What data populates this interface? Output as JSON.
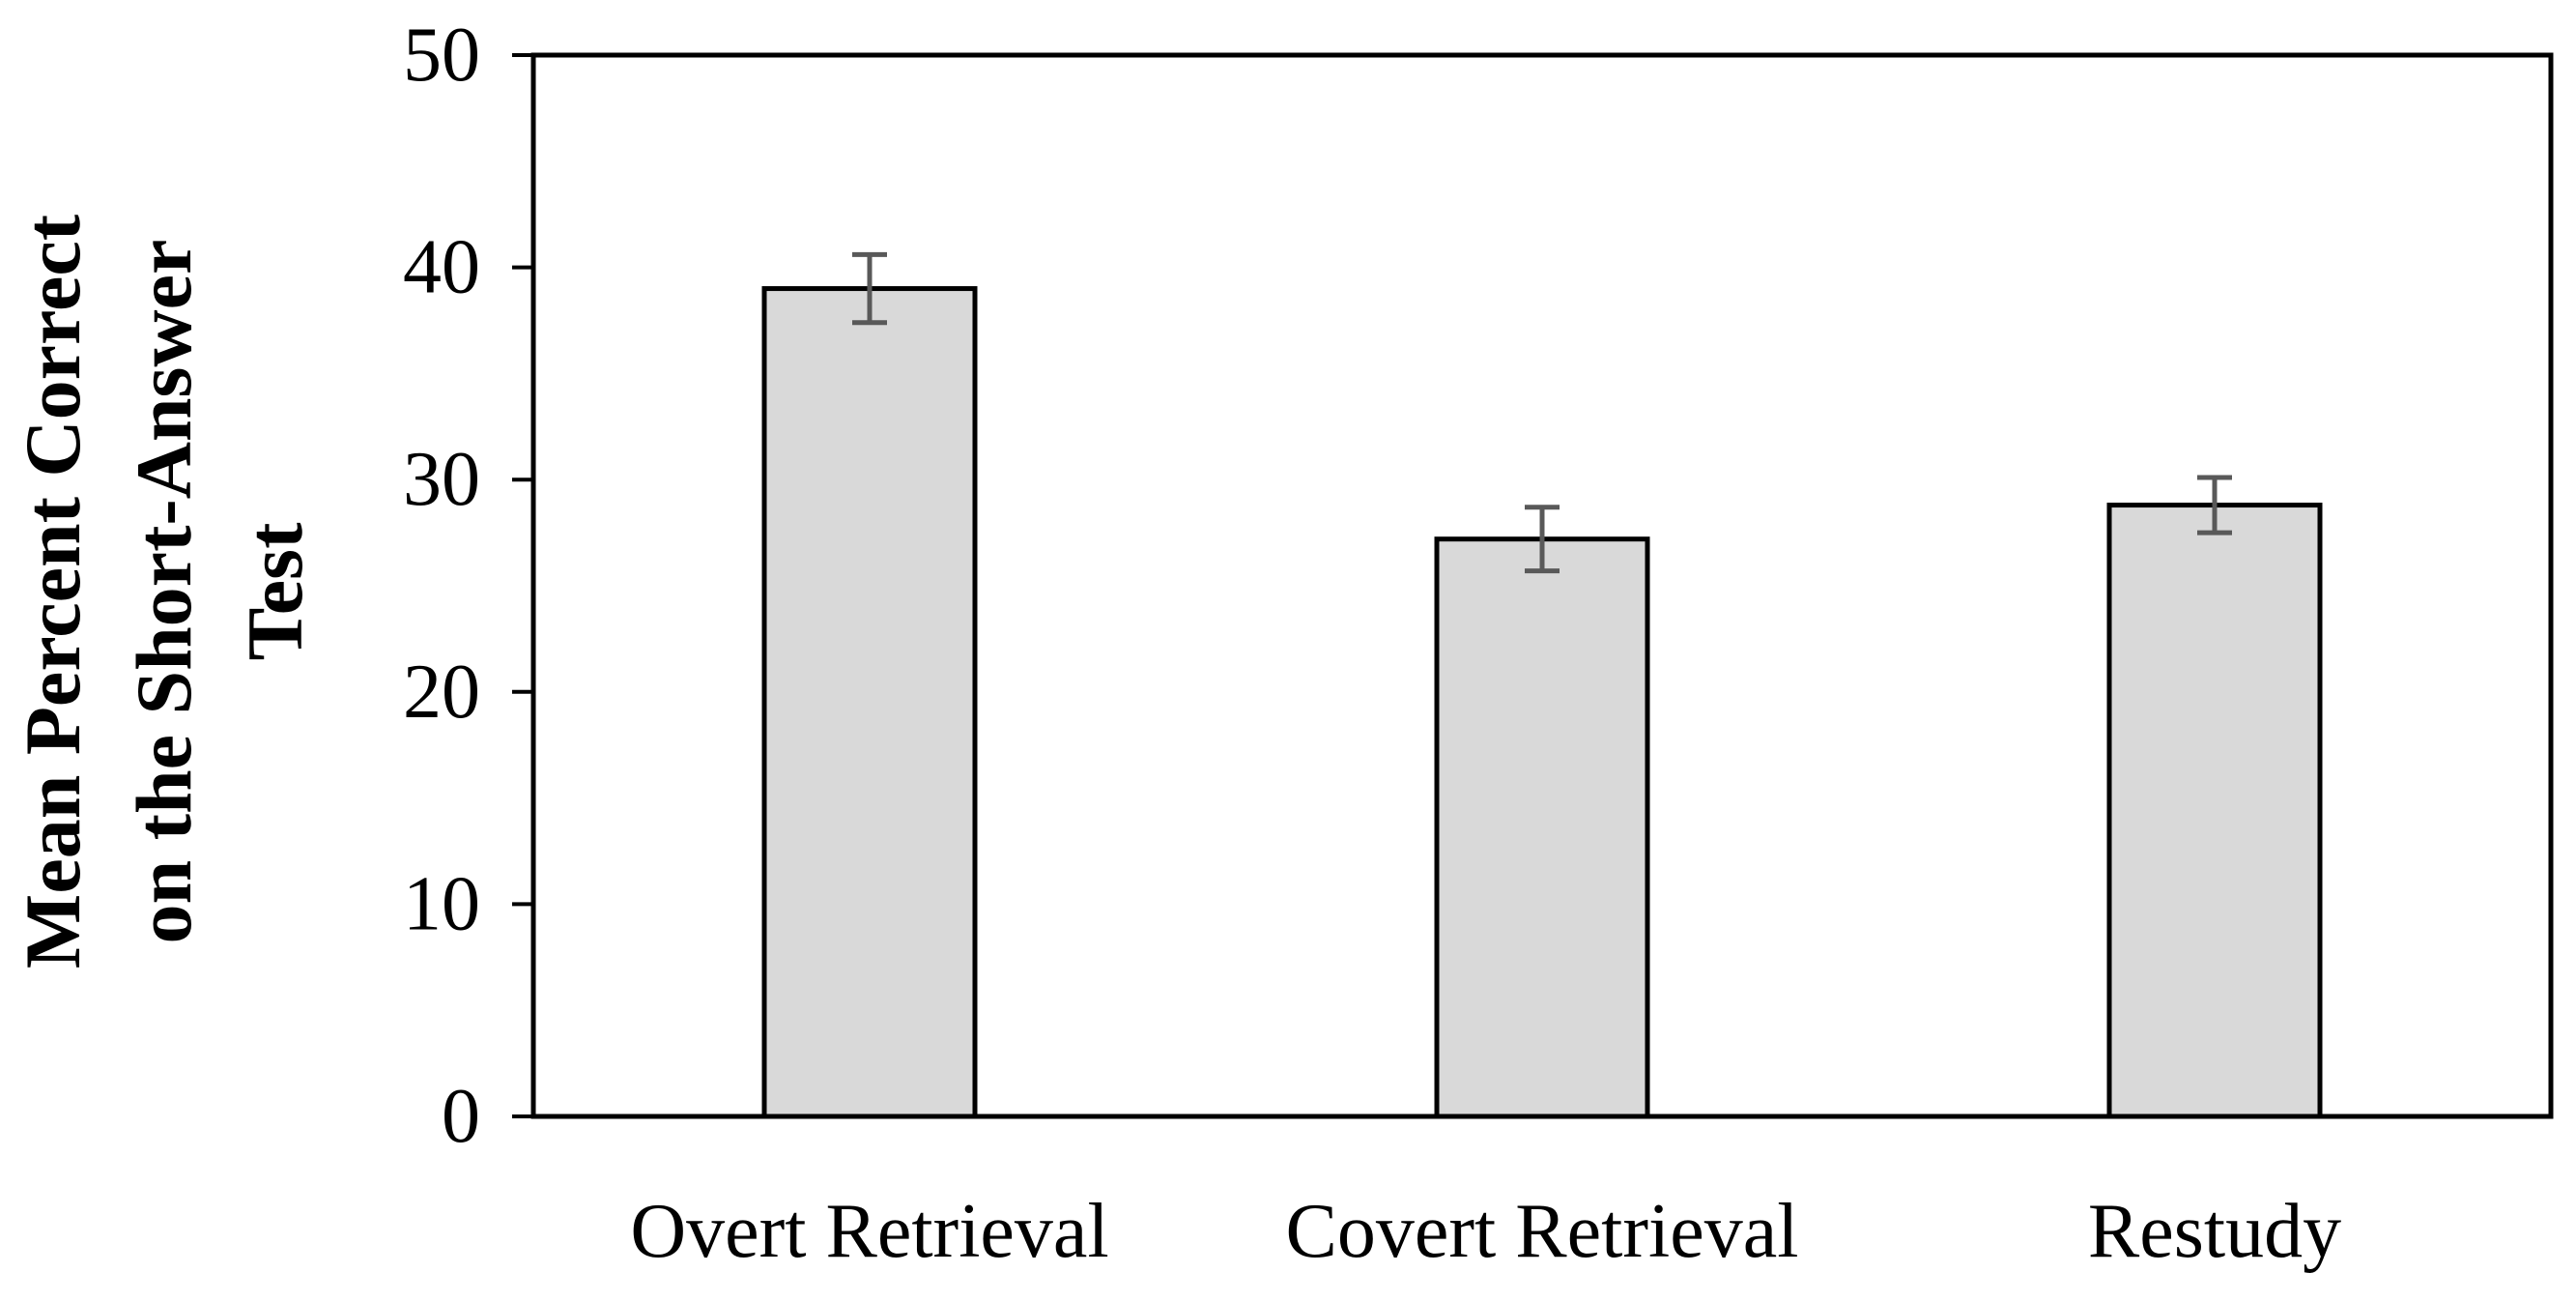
{
  "chart_data": {
    "type": "bar",
    "categories": [
      "Overt Retrieval",
      "Covert Retrieval",
      "Restudy"
    ],
    "values": [
      39.0,
      27.2,
      28.8
    ],
    "error": [
      1.6,
      1.5,
      1.3
    ],
    "ylabel_lines": [
      "Mean Percent Correct",
      "on the Short-Answer",
      "Test"
    ],
    "xlabel": "",
    "ylim": [
      0,
      50
    ],
    "yticks": [
      0,
      10,
      20,
      30,
      40,
      50
    ],
    "grid": false,
    "colors": {
      "bar_fill": "#d9d9d9",
      "bar_stroke": "#000000",
      "error_bar": "#595959",
      "frame": "#000000"
    }
  }
}
